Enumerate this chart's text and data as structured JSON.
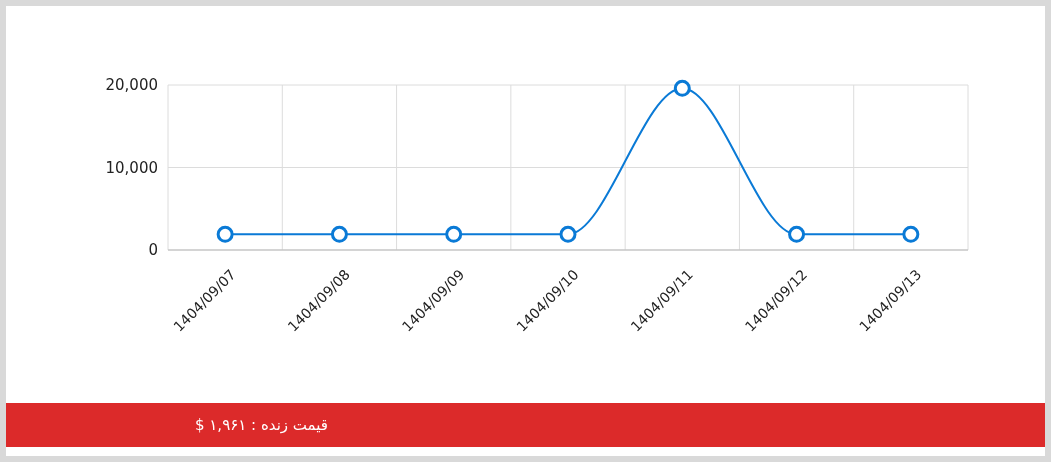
{
  "chart_data": {
    "type": "line",
    "categories": [
      "1404/09/07",
      "1404/09/08",
      "1404/09/09",
      "1404/09/10",
      "1404/09/11",
      "1404/09/12",
      "1404/09/13"
    ],
    "series": [
      {
        "color": "#0a7ad6",
        "values": [
          1900,
          1900,
          1900,
          1900,
          19600,
          1900,
          1900
        ]
      }
    ],
    "ylim": [
      0,
      20000
    ],
    "yticks": [
      0,
      {
        "value": 10000,
        "label": "10,000"
      },
      {
        "value": 20000,
        "label": "20,000"
      }
    ],
    "grid": true,
    "marker": "circle",
    "line_style": "solid",
    "annotations": [
      "قیمت زنده : ۱,۹۶۱ $"
    ]
  }
}
